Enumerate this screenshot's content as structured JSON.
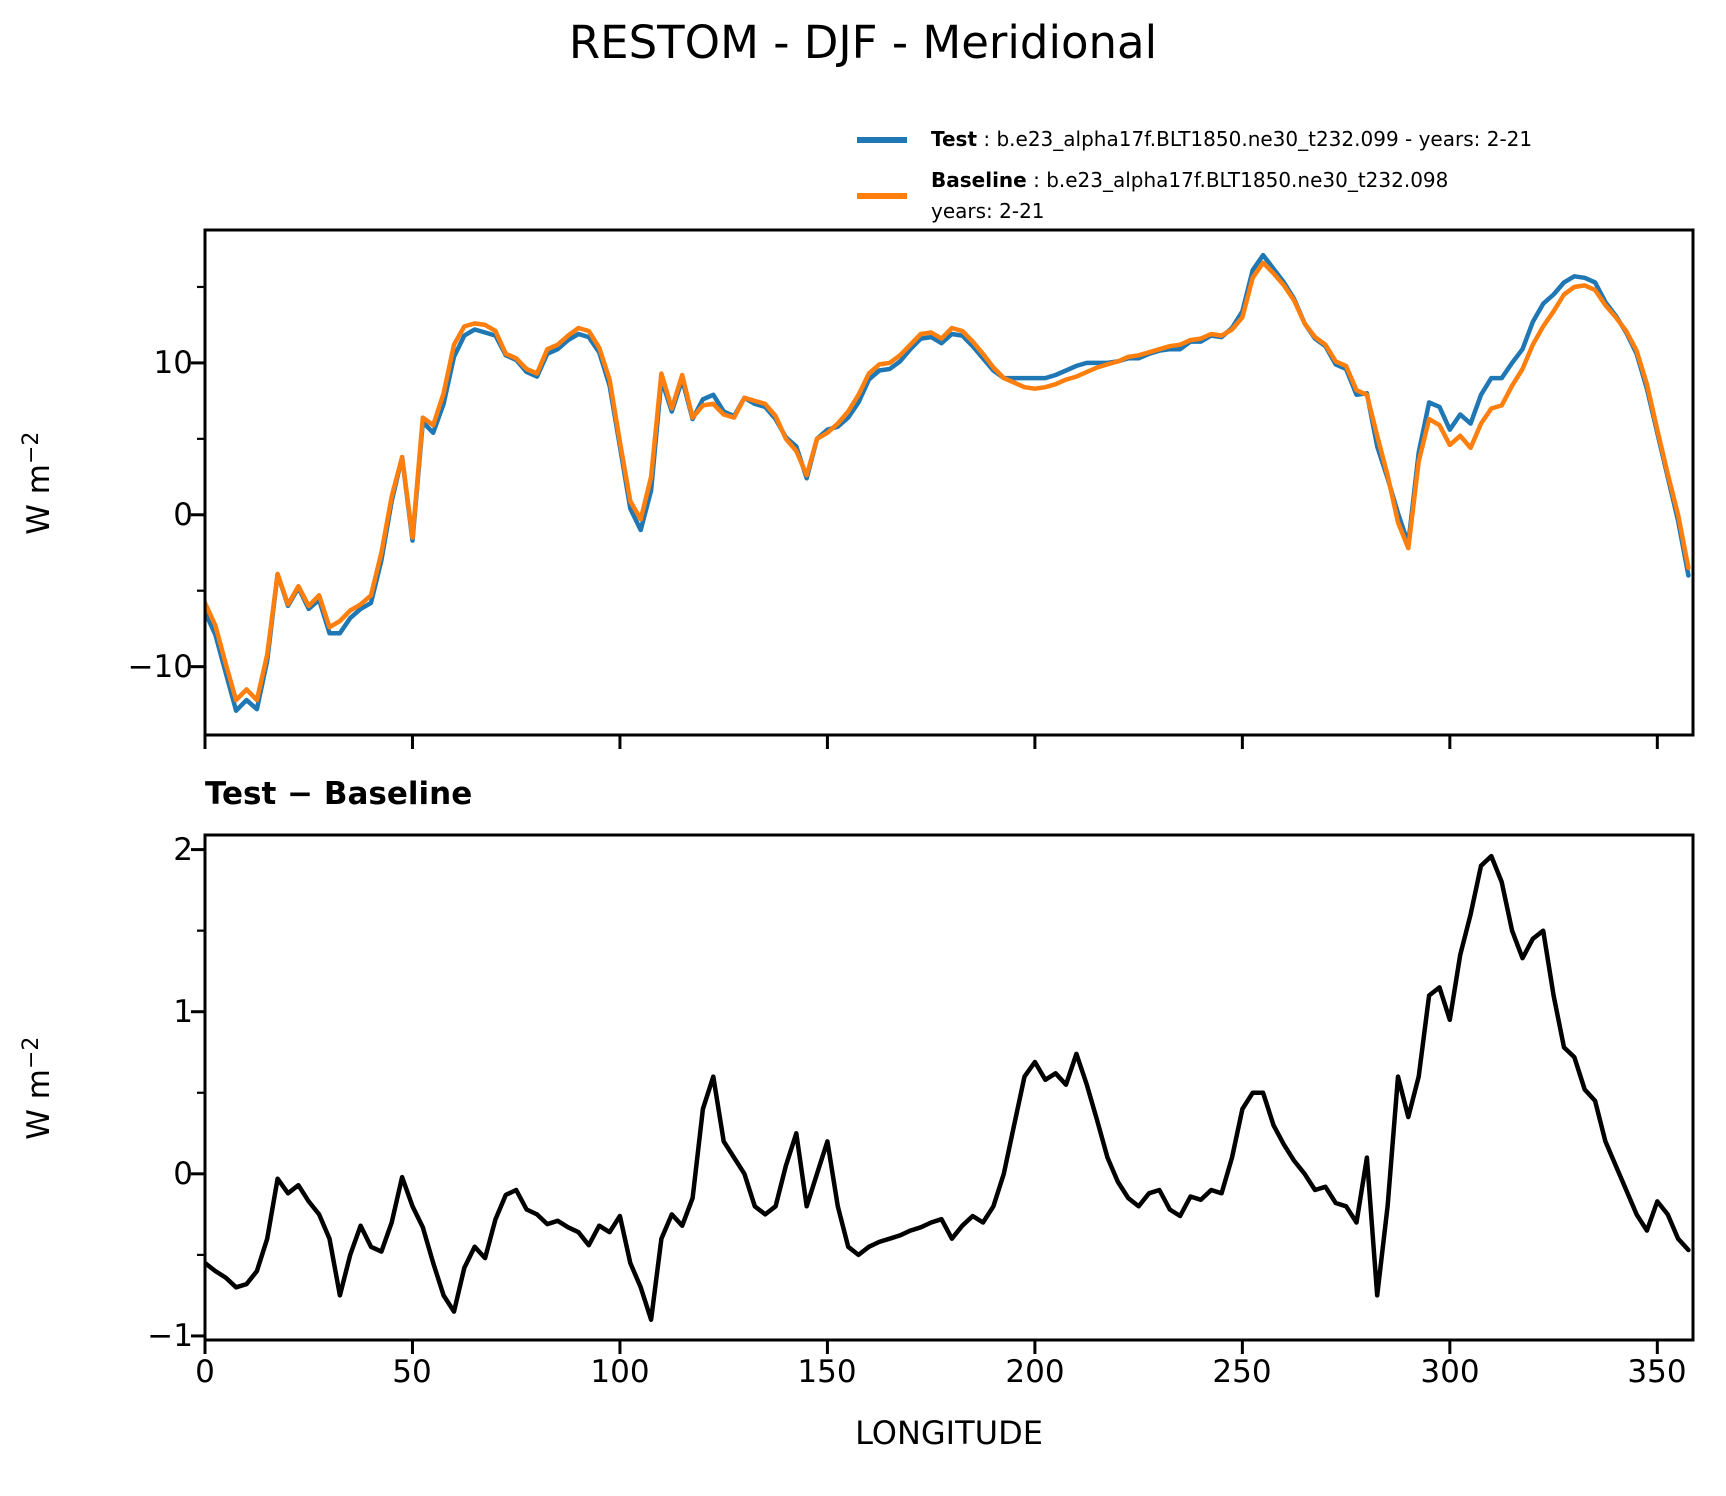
{
  "title": "RESTOM - DJF - Meridional",
  "legend": {
    "test_label": "Test",
    "test_rest": " : b.e23_alpha17f.BLT1850.ne30_t232.099 - years: 2-21",
    "baseline_label": "Baseline",
    "baseline_rest": " : b.e23_alpha17f.BLT1850.ne30_t232.098",
    "baseline_line2": "years: 2-21",
    "test_color": "#1f77b4",
    "baseline_color": "#ff7f0e"
  },
  "chart_data": [
    {
      "type": "line",
      "title": "",
      "ylabel": "W m^-2",
      "ylabel_base": "W m",
      "ylabel_exp": "−2",
      "xlim": [
        0,
        358.6
      ],
      "ylim": [
        -14.5,
        18.75
      ],
      "yticks": [
        10,
        0,
        -10
      ],
      "yticklabels": [
        "10",
        "0",
        "−10"
      ],
      "yticks_minor": [
        15,
        5,
        -5
      ],
      "xticks": [
        0,
        50,
        100,
        150,
        200,
        250,
        300,
        350
      ],
      "xticklabels": [],
      "grid": false,
      "legend_position": "above-right",
      "x": [
        0,
        2.5,
        5,
        7.5,
        10,
        12.5,
        15,
        17.5,
        20,
        22.5,
        25,
        27.5,
        30,
        32.5,
        35,
        37.5,
        40,
        42.5,
        45,
        47.5,
        50,
        52.5,
        55,
        57.5,
        60,
        62.5,
        65,
        67.5,
        70,
        72.5,
        75,
        77.5,
        80,
        82.5,
        85,
        87.5,
        90,
        92.5,
        95,
        97.5,
        100,
        102.5,
        105,
        107.5,
        110,
        112.5,
        115,
        117.5,
        120,
        122.5,
        125,
        127.5,
        130,
        132.5,
        135,
        137.5,
        140,
        142.5,
        145,
        147.5,
        150,
        152.5,
        155,
        157.5,
        160,
        162.5,
        165,
        167.5,
        170,
        172.5,
        175,
        177.5,
        180,
        182.5,
        185,
        187.5,
        190,
        192.5,
        195,
        197.5,
        200,
        202.5,
        205,
        207.5,
        210,
        212.5,
        215,
        217.5,
        220,
        222.5,
        225,
        227.5,
        230,
        232.5,
        235,
        237.5,
        240,
        242.5,
        245,
        247.5,
        250,
        252.5,
        255,
        257.5,
        260,
        262.5,
        265,
        267.5,
        270,
        272.5,
        275,
        277.5,
        280,
        282.5,
        285,
        287.5,
        290,
        292.5,
        295,
        297.5,
        300,
        302.5,
        305,
        307.5,
        310,
        312.5,
        315,
        317.5,
        320,
        322.5,
        325,
        327.5,
        330,
        332.5,
        335,
        337.5,
        340,
        342.5,
        345,
        347.5,
        350,
        352.5,
        355,
        357.5
      ],
      "series": [
        {
          "name": "Test",
          "color": "#1f77b4",
          "linewidth": 4.5,
          "values": [
            -6.4,
            -7.9,
            -10.4,
            -12.9,
            -12.2,
            -12.8,
            -9.6,
            -3.9,
            -6.0,
            -4.8,
            -6.2,
            -5.6,
            -7.8,
            -7.8,
            -6.8,
            -6.2,
            -5.8,
            -3.0,
            0.9,
            3.8,
            -1.7,
            6.1,
            5.4,
            7.3,
            10.4,
            11.8,
            12.2,
            12.0,
            11.8,
            10.5,
            10.2,
            9.4,
            9.1,
            10.6,
            10.9,
            11.5,
            11.9,
            11.7,
            10.7,
            8.5,
            4.5,
            0.4,
            -1.0,
            1.6,
            8.9,
            6.8,
            8.9,
            6.3,
            7.6,
            7.9,
            6.8,
            6.5,
            7.7,
            7.3,
            7.1,
            6.3,
            5.1,
            4.5,
            2.4,
            5.0,
            5.6,
            5.8,
            6.4,
            7.4,
            8.9,
            9.5,
            9.6,
            10.1,
            10.9,
            11.6,
            11.7,
            11.3,
            11.9,
            11.8,
            11.1,
            10.3,
            9.5,
            9.0,
            9.0,
            9.0,
            9.0,
            9.0,
            9.2,
            9.5,
            9.8,
            10.0,
            10.0,
            10.0,
            10.1,
            10.3,
            10.3,
            10.6,
            10.8,
            10.9,
            10.9,
            11.4,
            11.4,
            11.8,
            11.7,
            12.3,
            13.4,
            16.1,
            17.1,
            16.2,
            15.3,
            14.2,
            12.6,
            11.6,
            11.1,
            9.9,
            9.6,
            7.9,
            8.0,
            4.5,
            2.4,
            0.1,
            -1.9,
            4.1,
            7.4,
            7.1,
            5.6,
            6.6,
            6.0,
            7.9,
            9.0,
            9.0,
            10.0,
            10.9,
            12.7,
            13.9,
            14.5,
            15.3,
            15.7,
            15.6,
            15.3,
            14.0,
            13.1,
            12.0,
            10.6,
            8.3,
            5.4,
            2.5,
            -0.4,
            -4.0
          ]
        },
        {
          "name": "Baseline",
          "color": "#ff7f0e",
          "linewidth": 4.5,
          "values": [
            -5.8,
            -7.3,
            -9.8,
            -12.2,
            -11.5,
            -12.2,
            -9.2,
            -3.9,
            -5.9,
            -4.7,
            -6.0,
            -5.3,
            -7.4,
            -7.0,
            -6.3,
            -5.9,
            -5.3,
            -2.5,
            1.2,
            3.8,
            -1.5,
            6.4,
            5.9,
            8.0,
            11.2,
            12.4,
            12.6,
            12.5,
            12.1,
            10.6,
            10.3,
            9.6,
            9.3,
            10.9,
            11.2,
            11.8,
            12.3,
            12.1,
            11.0,
            8.9,
            4.8,
            0.9,
            -0.3,
            2.5,
            9.3,
            7.0,
            9.2,
            6.4,
            7.2,
            7.3,
            6.6,
            6.4,
            7.7,
            7.5,
            7.3,
            6.5,
            5.0,
            4.2,
            2.6,
            5.0,
            5.4,
            6.0,
            6.8,
            7.9,
            9.3,
            9.9,
            10.0,
            10.5,
            11.2,
            11.9,
            12.0,
            11.6,
            12.3,
            12.1,
            11.4,
            10.6,
            9.7,
            9.0,
            8.7,
            8.4,
            8.3,
            8.4,
            8.6,
            8.9,
            9.1,
            9.4,
            9.7,
            9.9,
            10.1,
            10.4,
            10.5,
            10.7,
            10.9,
            11.1,
            11.2,
            11.5,
            11.6,
            11.9,
            11.8,
            12.2,
            13.0,
            15.6,
            16.6,
            15.9,
            15.1,
            14.1,
            12.6,
            11.7,
            11.2,
            10.1,
            9.8,
            8.2,
            7.9,
            5.2,
            2.6,
            -0.5,
            -2.2,
            3.5,
            6.3,
            5.9,
            4.6,
            5.2,
            4.4,
            6.0,
            7.0,
            7.2,
            8.5,
            9.6,
            11.2,
            12.4,
            13.4,
            14.5,
            15.0,
            15.1,
            14.8,
            13.8,
            13.0,
            12.1,
            10.8,
            8.6,
            5.6,
            2.7,
            0.0,
            -3.5
          ]
        }
      ]
    },
    {
      "type": "line",
      "title": "Test − Baseline",
      "ylabel": "W m^-2",
      "ylabel_base": "W m",
      "ylabel_exp": "−2",
      "xlabel": "LONGITUDE",
      "xlim": [
        0,
        358.6
      ],
      "ylim": [
        -1.025,
        2.09
      ],
      "yticks": [
        2,
        1,
        0,
        -1
      ],
      "yticklabels": [
        "2",
        "1",
        "0",
        "−1"
      ],
      "yticks_minor": [
        1.5,
        0.5,
        -0.5
      ],
      "xticks": [
        0,
        50,
        100,
        150,
        200,
        250,
        300,
        350
      ],
      "xticklabels": [
        "0",
        "50",
        "100",
        "150",
        "200",
        "250",
        "300",
        "350"
      ],
      "grid": false,
      "x": [
        0,
        2.5,
        5,
        7.5,
        10,
        12.5,
        15,
        17.5,
        20,
        22.5,
        25,
        27.5,
        30,
        32.5,
        35,
        37.5,
        40,
        42.5,
        45,
        47.5,
        50,
        52.5,
        55,
        57.5,
        60,
        62.5,
        65,
        67.5,
        70,
        72.5,
        75,
        77.5,
        80,
        82.5,
        85,
        87.5,
        90,
        92.5,
        95,
        97.5,
        100,
        102.5,
        105,
        107.5,
        110,
        112.5,
        115,
        117.5,
        120,
        122.5,
        125,
        127.5,
        130,
        132.5,
        135,
        137.5,
        140,
        142.5,
        145,
        147.5,
        150,
        152.5,
        155,
        157.5,
        160,
        162.5,
        165,
        167.5,
        170,
        172.5,
        175,
        177.5,
        180,
        182.5,
        185,
        187.5,
        190,
        192.5,
        195,
        197.5,
        200,
        202.5,
        205,
        207.5,
        210,
        212.5,
        215,
        217.5,
        220,
        222.5,
        225,
        227.5,
        230,
        232.5,
        235,
        237.5,
        240,
        242.5,
        245,
        247.5,
        250,
        252.5,
        255,
        257.5,
        260,
        262.5,
        265,
        267.5,
        270,
        272.5,
        275,
        277.5,
        280,
        282.5,
        285,
        287.5,
        290,
        292.5,
        295,
        297.5,
        300,
        302.5,
        305,
        307.5,
        310,
        312.5,
        315,
        317.5,
        320,
        322.5,
        325,
        327.5,
        330,
        332.5,
        335,
        337.5,
        340,
        342.5,
        345,
        347.5,
        350,
        352.5,
        355,
        357.5
      ],
      "series": [
        {
          "name": "Test − Baseline",
          "color": "#000000",
          "linewidth": 4.5,
          "values": [
            -0.55,
            -0.6,
            -0.64,
            -0.7,
            -0.68,
            -0.6,
            -0.4,
            -0.03,
            -0.12,
            -0.07,
            -0.17,
            -0.25,
            -0.4,
            -0.75,
            -0.5,
            -0.32,
            -0.45,
            -0.48,
            -0.3,
            -0.02,
            -0.2,
            -0.33,
            -0.55,
            -0.75,
            -0.85,
            -0.58,
            -0.45,
            -0.52,
            -0.28,
            -0.13,
            -0.1,
            -0.22,
            -0.25,
            -0.31,
            -0.29,
            -0.33,
            -0.36,
            -0.44,
            -0.32,
            -0.36,
            -0.26,
            -0.55,
            -0.7,
            -0.9,
            -0.4,
            -0.25,
            -0.32,
            -0.15,
            0.4,
            0.6,
            0.2,
            0.1,
            0.0,
            -0.2,
            -0.25,
            -0.2,
            0.05,
            0.25,
            -0.2,
            0.0,
            0.2,
            -0.2,
            -0.45,
            -0.5,
            -0.45,
            -0.42,
            -0.4,
            -0.38,
            -0.35,
            -0.33,
            -0.3,
            -0.28,
            -0.4,
            -0.32,
            -0.26,
            -0.3,
            -0.2,
            0.0,
            0.3,
            0.6,
            0.69,
            0.58,
            0.62,
            0.55,
            0.74,
            0.55,
            0.33,
            0.1,
            -0.05,
            -0.15,
            -0.2,
            -0.12,
            -0.1,
            -0.22,
            -0.26,
            -0.14,
            -0.16,
            -0.1,
            -0.12,
            0.1,
            0.4,
            0.5,
            0.5,
            0.3,
            0.18,
            0.08,
            0.0,
            -0.1,
            -0.08,
            -0.18,
            -0.2,
            -0.3,
            0.1,
            -0.75,
            -0.2,
            0.6,
            0.35,
            0.6,
            1.1,
            1.15,
            0.95,
            1.35,
            1.6,
            1.9,
            1.96,
            1.8,
            1.5,
            1.33,
            1.45,
            1.5,
            1.1,
            0.78,
            0.72,
            0.52,
            0.45,
            0.2,
            0.05,
            -0.1,
            -0.25,
            -0.35,
            -0.17,
            -0.25,
            -0.4,
            -0.47
          ]
        }
      ]
    }
  ]
}
